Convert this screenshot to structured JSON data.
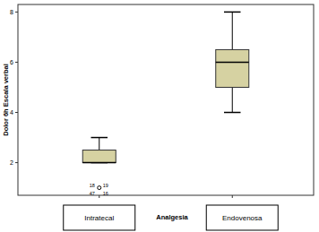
{
  "chart_data": {
    "type": "box",
    "y_label": "Dolor 6h Escala verbal",
    "x_label": "Analgesia",
    "categories": [
      "Intratecal",
      "Endovenosa"
    ],
    "boxes": [
      {
        "min": 2,
        "q1": 2,
        "median": 2,
        "q3": 2.5,
        "max": 3,
        "outliers": [
          {
            "value": 1,
            "labels": [
              "18",
              "19",
              "47",
              "16"
            ]
          }
        ]
      },
      {
        "min": 4,
        "q1": 5,
        "median": 6,
        "q3": 6.5,
        "max": 8,
        "outliers": []
      }
    ],
    "color": "#d6d2a2",
    "ylim": [
      0.7,
      8.3
    ],
    "yticks": [
      2,
      4,
      6,
      8
    ],
    "grid": false
  }
}
